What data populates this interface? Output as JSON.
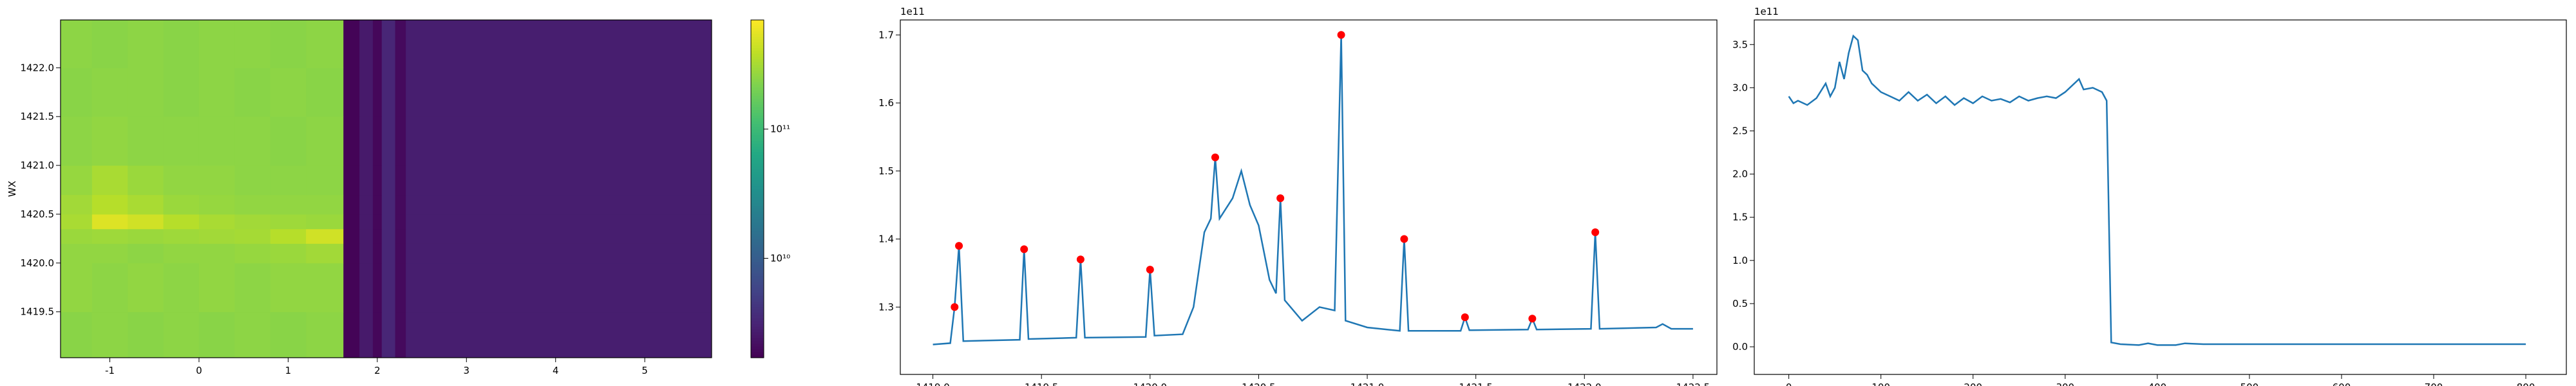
{
  "chart_data": [
    {
      "type": "heatmap",
      "ylabel": "WX",
      "colormap": "viridis",
      "log_color": true,
      "xlim": [
        -1.553,
        5.75
      ],
      "ylim": [
        1419.03,
        1422.49
      ],
      "xticks": [
        -1,
        0,
        1,
        2,
        3,
        4,
        5
      ],
      "yticks": [
        1419.5,
        {
          "value": 1420,
          "label": "1420.0"
        },
        1420.5,
        {
          "value": 1421,
          "label": "1421.0"
        },
        1421.5,
        {
          "value": 1422,
          "label": "1422.0"
        }
      ],
      "x_edges": [
        -1.553,
        -1.2,
        -0.8,
        -0.4,
        0,
        0.4,
        0.8,
        1.2,
        1.62,
        1.8,
        1.95,
        2.05,
        2.2,
        2.32,
        3.5,
        4.6,
        5.75
      ],
      "y_edges": [
        1419.03,
        1419.5,
        1420.0,
        1420.2,
        1420.35,
        1420.5,
        1420.7,
        1421.0,
        1421.5,
        1422.0,
        1422.49
      ],
      "z": [
        [
          240000000000.0,
          250000000000.0,
          240000000000.0,
          250000000000.0,
          240000000000.0,
          250000000000.0,
          240000000000.0,
          250000000000.0,
          1800000000.0,
          2600000000.0,
          1900000000.0,
          3200000000.0,
          2000000000.0,
          2800000000.0,
          2800000000.0,
          2800000000.0
        ],
        [
          260000000000.0,
          250000000000.0,
          260000000000.0,
          250000000000.0,
          260000000000.0,
          250000000000.0,
          260000000000.0,
          260000000000.0,
          1800000000.0,
          2600000000.0,
          1900000000.0,
          3200000000.0,
          2000000000.0,
          2800000000.0,
          2800000000.0,
          2800000000.0
        ],
        [
          260000000000.0,
          260000000000.0,
          250000000000.0,
          260000000000.0,
          260000000000.0,
          270000000000.0,
          280000000000.0,
          300000000000.0,
          1800000000.0,
          2600000000.0,
          1900000000.0,
          3200000000.0,
          2000000000.0,
          2800000000.0,
          2800000000.0,
          2800000000.0
        ],
        [
          280000000000.0,
          290000000000.0,
          280000000000.0,
          290000000000.0,
          300000000000.0,
          310000000000.0,
          360000000000.0,
          460000000000.0,
          1800000000.0,
          2600000000.0,
          1900000000.0,
          3200000000.0,
          2000000000.0,
          2800000000.0,
          2800000000.0,
          2800000000.0
        ],
        [
          320000000000.0,
          520000000000.0,
          460000000000.0,
          360000000000.0,
          320000000000.0,
          300000000000.0,
          290000000000.0,
          280000000000.0,
          1800000000.0,
          2600000000.0,
          1900000000.0,
          3200000000.0,
          2000000000.0,
          2800000000.0,
          2800000000.0,
          2800000000.0
        ],
        [
          300000000000.0,
          360000000000.0,
          320000000000.0,
          280000000000.0,
          270000000000.0,
          260000000000.0,
          260000000000.0,
          260000000000.0,
          1800000000.0,
          2600000000.0,
          1900000000.0,
          3200000000.0,
          2000000000.0,
          2800000000.0,
          2800000000.0,
          2800000000.0
        ],
        [
          270000000000.0,
          320000000000.0,
          280000000000.0,
          260000000000.0,
          260000000000.0,
          250000000000.0,
          250000000000.0,
          250000000000.0,
          1800000000.0,
          2600000000.0,
          1900000000.0,
          3200000000.0,
          2000000000.0,
          2800000000.0,
          2800000000.0,
          2800000000.0
        ],
        [
          250000000000.0,
          260000000000.0,
          250000000000.0,
          250000000000.0,
          250000000000.0,
          250000000000.0,
          240000000000.0,
          250000000000.0,
          1800000000.0,
          2600000000.0,
          1900000000.0,
          3200000000.0,
          2000000000.0,
          2800000000.0,
          2800000000.0,
          2800000000.0
        ],
        [
          240000000000.0,
          250000000000.0,
          250000000000.0,
          240000000000.0,
          250000000000.0,
          240000000000.0,
          250000000000.0,
          240000000000.0,
          1800000000.0,
          2600000000.0,
          1900000000.0,
          3200000000.0,
          2000000000.0,
          2800000000.0,
          2800000000.0,
          2800000000.0
        ],
        [
          250000000000.0,
          240000000000.0,
          250000000000.0,
          240000000000.0,
          250000000000.0,
          250000000000.0,
          240000000000.0,
          250000000000.0,
          1800000000.0,
          2600000000.0,
          1900000000.0,
          3200000000.0,
          2000000000.0,
          2800000000.0,
          2800000000.0,
          2800000000.0
        ]
      ],
      "clim": [
        1700000000.0,
        700000000000.0
      ],
      "cticks": [
        {
          "value": 10000000000.0,
          "label": "10¹⁰"
        },
        {
          "value": 100000000000.0,
          "label": "10¹¹"
        }
      ]
    },
    {
      "type": "line",
      "y_offset": "1e11",
      "xlim": [
        1418.85,
        1422.61
      ],
      "ylim": [
        1.201,
        1.722
      ],
      "xticks": [
        {
          "value": 1419,
          "label": "1419.0"
        },
        1419.5,
        {
          "value": 1420,
          "label": "1420.0"
        },
        1420.5,
        {
          "value": 1421,
          "label": "1421.0"
        },
        1421.5,
        {
          "value": 1422,
          "label": "1422.0"
        },
        1422.5
      ],
      "yticks": [
        1.3,
        1.4,
        1.5,
        1.6,
        1.7
      ],
      "series": [
        {
          "type": "line",
          "color": "#1f77b4",
          "x": [
            1419.0,
            1419.08,
            1419.1,
            1419.12,
            1419.14,
            1419.4,
            1419.42,
            1419.44,
            1419.66,
            1419.68,
            1419.7,
            1419.98,
            1420.0,
            1420.02,
            1420.15,
            1420.2,
            1420.25,
            1420.28,
            1420.3,
            1420.32,
            1420.38,
            1420.42,
            1420.46,
            1420.5,
            1420.55,
            1420.58,
            1420.6,
            1420.62,
            1420.7,
            1420.78,
            1420.85,
            1420.88,
            1420.9,
            1421.0,
            1421.15,
            1421.17,
            1421.19,
            1421.43,
            1421.45,
            1421.47,
            1421.74,
            1421.76,
            1421.78,
            1422.03,
            1422.05,
            1422.07,
            1422.33,
            1422.36,
            1422.4,
            1422.5
          ],
          "values": [
            1.245,
            1.247,
            1.3,
            1.39,
            1.25,
            1.252,
            1.385,
            1.253,
            1.255,
            1.37,
            1.255,
            1.256,
            1.355,
            1.258,
            1.26,
            1.3,
            1.41,
            1.43,
            1.52,
            1.43,
            1.46,
            1.5,
            1.45,
            1.42,
            1.34,
            1.32,
            1.46,
            1.31,
            1.28,
            1.3,
            1.295,
            1.7,
            1.28,
            1.27,
            1.265,
            1.4,
            1.265,
            1.265,
            1.285,
            1.266,
            1.267,
            1.283,
            1.267,
            1.268,
            1.41,
            1.268,
            1.27,
            1.275,
            1.268,
            1.268
          ]
        },
        {
          "type": "scatter",
          "color": "#ff0000",
          "x": [
            1419.1,
            1419.12,
            1419.42,
            1419.68,
            1420.0,
            1420.3,
            1420.6,
            1420.88,
            1421.17,
            1421.45,
            1421.76,
            1422.05
          ],
          "values": [
            1.3,
            1.39,
            1.385,
            1.37,
            1.355,
            1.52,
            1.46,
            1.7,
            1.4,
            1.285,
            1.283,
            1.41
          ]
        }
      ]
    },
    {
      "type": "line",
      "y_offset": "1e11",
      "xlim": [
        -37.5,
        844
      ],
      "ylim": [
        -0.32,
        3.785
      ],
      "xticks": [
        0,
        100,
        200,
        300,
        400,
        500,
        600,
        700,
        800
      ],
      "yticks": [
        {
          "value": 0,
          "label": "0.0"
        },
        0.5,
        {
          "value": 1,
          "label": "1.0"
        },
        1.5,
        {
          "value": 2,
          "label": "2.0"
        },
        2.5,
        {
          "value": 3,
          "label": "3.0"
        },
        3.5
      ],
      "series": [
        {
          "type": "line",
          "color": "#1f77b4",
          "x": [
            0,
            5,
            10,
            20,
            30,
            40,
            45,
            50,
            55,
            60,
            65,
            70,
            75,
            80,
            85,
            90,
            100,
            110,
            120,
            130,
            140,
            150,
            160,
            170,
            180,
            190,
            200,
            210,
            220,
            230,
            240,
            250,
            260,
            270,
            280,
            290,
            300,
            310,
            315,
            320,
            330,
            340,
            345,
            350,
            360,
            380,
            390,
            400,
            420,
            430,
            450,
            500,
            600,
            700,
            800
          ],
          "values": [
            2.9,
            2.82,
            2.85,
            2.8,
            2.88,
            3.05,
            2.9,
            3.0,
            3.3,
            3.1,
            3.4,
            3.6,
            3.55,
            3.2,
            3.15,
            3.05,
            2.95,
            2.9,
            2.85,
            2.95,
            2.85,
            2.92,
            2.82,
            2.9,
            2.8,
            2.88,
            2.82,
            2.9,
            2.85,
            2.87,
            2.83,
            2.9,
            2.85,
            2.88,
            2.9,
            2.88,
            2.95,
            3.05,
            3.1,
            2.98,
            3.0,
            2.95,
            2.85,
            0.05,
            0.03,
            0.02,
            0.04,
            0.02,
            0.02,
            0.04,
            0.03,
            0.03,
            0.03,
            0.03,
            0.03
          ]
        }
      ]
    }
  ]
}
